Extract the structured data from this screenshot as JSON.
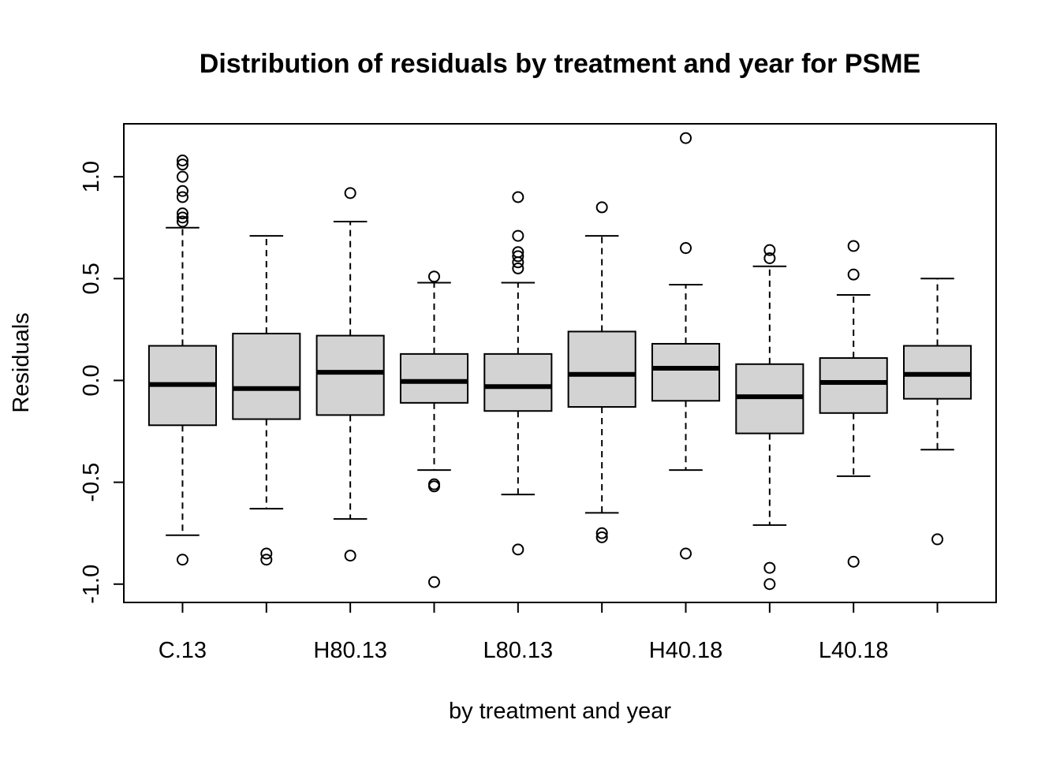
{
  "chart_data": {
    "type": "boxplot",
    "title": "Distribution of residuals by treatment and year for PSME",
    "xlabel": "by treatment and year",
    "ylabel": "Residuals",
    "ylim": [
      -1.09,
      1.26
    ],
    "yticks": [
      -1.0,
      -0.5,
      0.0,
      0.5,
      1.0
    ],
    "ytick_labels": [
      "-1.0",
      "-0.5",
      "0.0",
      "0.5",
      "1.0"
    ],
    "x_tick_labels": [
      "C.13",
      "",
      "H80.13",
      "",
      "L80.13",
      "",
      "H40.18",
      "",
      "L40.18",
      ""
    ],
    "grid": false,
    "box_fill": "#d3d3d3",
    "boxes": [
      {
        "whisker_low": -0.76,
        "q1": -0.22,
        "median": -0.02,
        "q3": 0.17,
        "whisker_high": 0.75,
        "outliers": [
          0.78,
          0.8,
          0.82,
          0.9,
          0.93,
          1.0,
          1.06,
          1.08,
          -0.88
        ]
      },
      {
        "whisker_low": -0.63,
        "q1": -0.19,
        "median": -0.04,
        "q3": 0.23,
        "whisker_high": 0.71,
        "outliers": [
          -0.85,
          -0.88
        ]
      },
      {
        "whisker_low": -0.68,
        "q1": -0.17,
        "median": 0.04,
        "q3": 0.22,
        "whisker_high": 0.78,
        "outliers": [
          0.92,
          -0.86
        ]
      },
      {
        "whisker_low": -0.44,
        "q1": -0.11,
        "median": -0.005,
        "q3": 0.13,
        "whisker_high": 0.48,
        "outliers": [
          0.51,
          -0.51,
          -0.52,
          -0.99
        ]
      },
      {
        "whisker_low": -0.56,
        "q1": -0.15,
        "median": -0.03,
        "q3": 0.13,
        "whisker_high": 0.48,
        "outliers": [
          0.55,
          0.58,
          0.61,
          0.63,
          0.71,
          0.9,
          -0.83
        ]
      },
      {
        "whisker_low": -0.65,
        "q1": -0.13,
        "median": 0.03,
        "q3": 0.24,
        "whisker_high": 0.71,
        "outliers": [
          0.85,
          -0.75,
          -0.77
        ]
      },
      {
        "whisker_low": -0.44,
        "q1": -0.1,
        "median": 0.06,
        "q3": 0.18,
        "whisker_high": 0.47,
        "outliers": [
          0.65,
          1.19,
          -0.85
        ]
      },
      {
        "whisker_low": -0.71,
        "q1": -0.26,
        "median": -0.08,
        "q3": 0.08,
        "whisker_high": 0.56,
        "outliers": [
          0.6,
          0.64,
          -0.92,
          -1.0
        ]
      },
      {
        "whisker_low": -0.47,
        "q1": -0.16,
        "median": -0.01,
        "q3": 0.11,
        "whisker_high": 0.42,
        "outliers": [
          0.52,
          0.66,
          -0.89
        ]
      },
      {
        "whisker_low": -0.34,
        "q1": -0.09,
        "median": 0.03,
        "q3": 0.17,
        "whisker_high": 0.5,
        "outliers": [
          -0.78
        ]
      }
    ]
  }
}
